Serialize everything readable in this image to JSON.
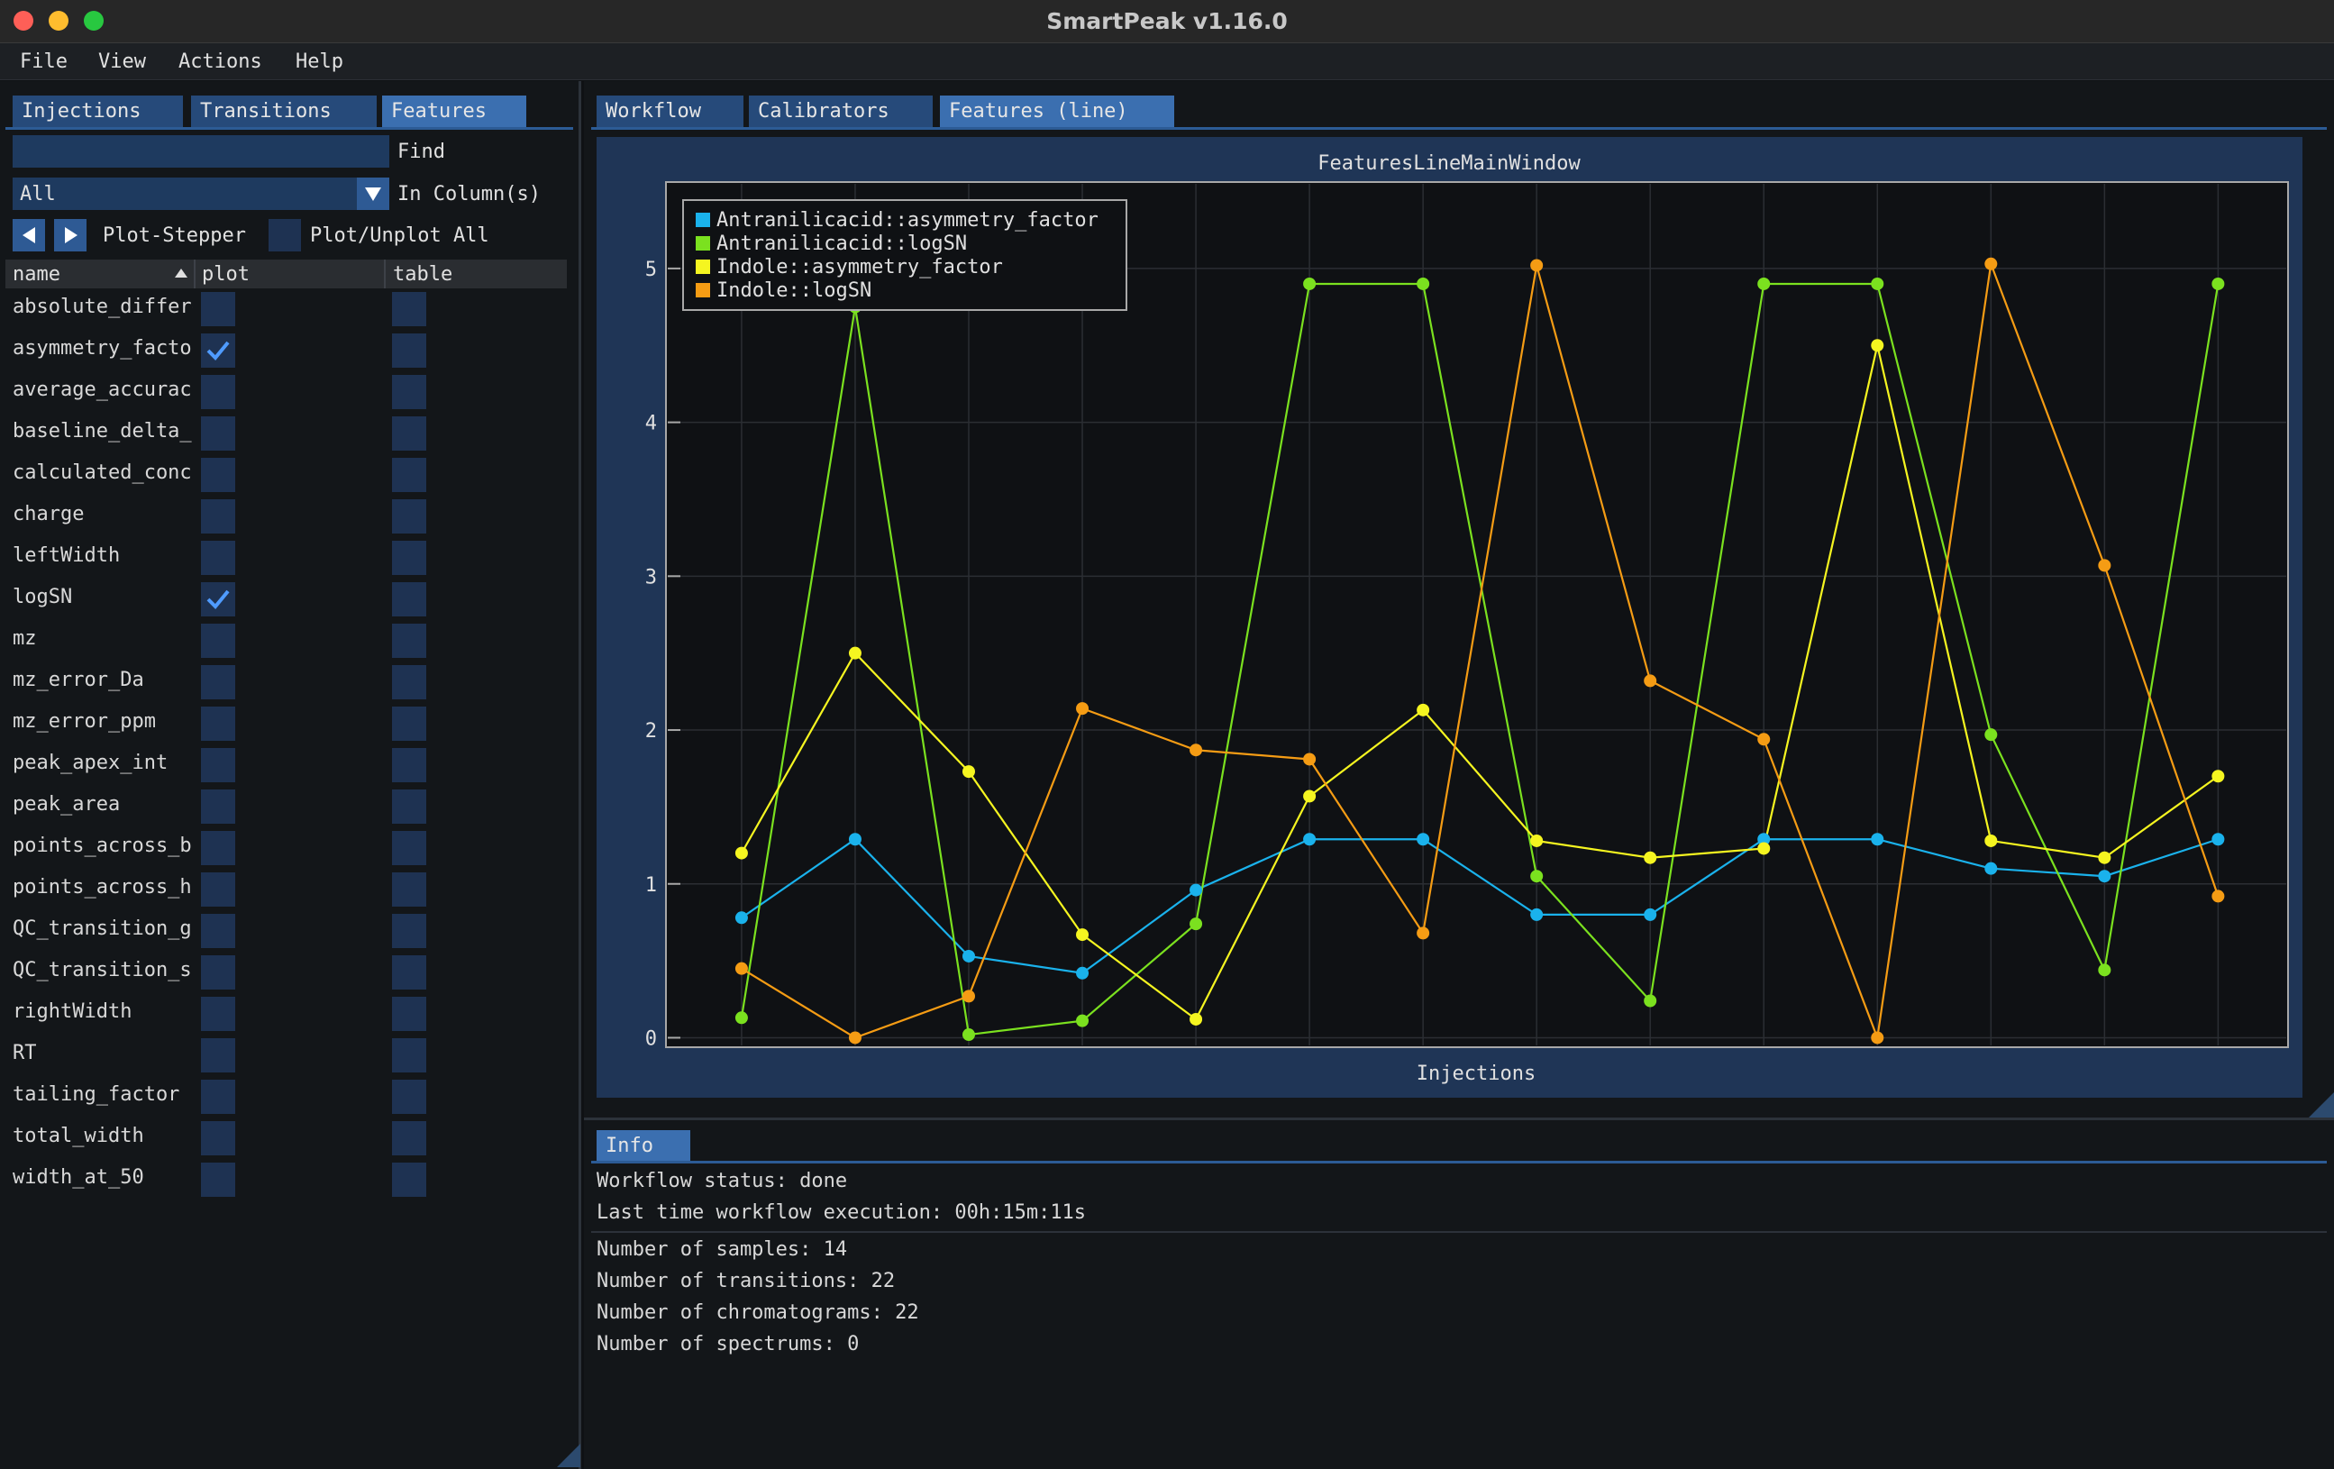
{
  "window": {
    "title": "SmartPeak v1.16.0"
  },
  "menu": [
    "File",
    "View",
    "Actions",
    "Help"
  ],
  "left_tabs": [
    {
      "label": "Injections",
      "active": false
    },
    {
      "label": "Transitions",
      "active": false
    },
    {
      "label": "Features",
      "active": true
    }
  ],
  "filter": {
    "find_value": "",
    "find_label": "Find",
    "column_value": "All",
    "column_label": "In Column(s)",
    "stepper_label": "Plot-Stepper",
    "plot_all_label": "Plot/Unplot All"
  },
  "table": {
    "headers": [
      "name",
      "plot",
      "table"
    ],
    "rows": [
      {
        "name": "absolute_differe",
        "plot": false,
        "table": false
      },
      {
        "name": "asymmetry_facto",
        "plot": true,
        "table": false
      },
      {
        "name": "average_accurac",
        "plot": false,
        "table": false
      },
      {
        "name": "baseline_delta_",
        "plot": false,
        "table": false
      },
      {
        "name": "calculated_conc",
        "plot": false,
        "table": false
      },
      {
        "name": "charge",
        "plot": false,
        "table": false
      },
      {
        "name": "leftWidth",
        "plot": false,
        "table": false
      },
      {
        "name": "logSN",
        "plot": true,
        "table": false
      },
      {
        "name": "mz",
        "plot": false,
        "table": false
      },
      {
        "name": "mz_error_Da",
        "plot": false,
        "table": false
      },
      {
        "name": "mz_error_ppm",
        "plot": false,
        "table": false
      },
      {
        "name": "peak_apex_int",
        "plot": false,
        "table": false
      },
      {
        "name": "peak_area",
        "plot": false,
        "table": false
      },
      {
        "name": "points_across_b",
        "plot": false,
        "table": false
      },
      {
        "name": "points_across_h",
        "plot": false,
        "table": false
      },
      {
        "name": "QC_transition_g",
        "plot": false,
        "table": false
      },
      {
        "name": "QC_transition_s",
        "plot": false,
        "table": false
      },
      {
        "name": "rightWidth",
        "plot": false,
        "table": false
      },
      {
        "name": "RT",
        "plot": false,
        "table": false
      },
      {
        "name": "tailing_factor",
        "plot": false,
        "table": false
      },
      {
        "name": "total_width",
        "plot": false,
        "table": false
      },
      {
        "name": "width_at_50",
        "plot": false,
        "table": false
      }
    ]
  },
  "right_tabs": [
    {
      "label": "Workflow",
      "active": false
    },
    {
      "label": "Calibrators",
      "active": false
    },
    {
      "label": "Features (line)",
      "active": true
    }
  ],
  "chart_data": {
    "type": "line",
    "title": "FeaturesLineMainWindow",
    "xlabel": "Injections",
    "ylabel": "",
    "xlim": [
      0.35,
      14.6
    ],
    "ylim": [
      -0.05,
      5.55
    ],
    "yticks": [
      0,
      1,
      2,
      3,
      4,
      5
    ],
    "grid": true,
    "legend_position": "top-left",
    "x": [
      1,
      2,
      3,
      4,
      5,
      6,
      7,
      8,
      9,
      10,
      11,
      12,
      13,
      14
    ],
    "series": [
      {
        "name": "Antranilicacid::asymmetry_factor",
        "color": "#1ab2ec",
        "values": [
          0.78,
          1.29,
          0.53,
          0.42,
          0.96,
          1.29,
          1.29,
          0.8,
          0.8,
          1.29,
          1.29,
          1.1,
          1.05,
          1.29
        ]
      },
      {
        "name": "Antranilicacid::logSN",
        "color": "#7be11f",
        "values": [
          0.13,
          4.75,
          0.02,
          0.11,
          0.74,
          4.9,
          4.9,
          1.05,
          0.24,
          4.9,
          4.9,
          1.97,
          0.44,
          4.9
        ]
      },
      {
        "name": "Indole::asymmetry_factor",
        "color": "#f5f520",
        "values": [
          1.2,
          2.5,
          1.73,
          0.67,
          0.12,
          1.57,
          2.13,
          1.28,
          1.17,
          1.23,
          4.5,
          1.28,
          1.17,
          1.7
        ]
      },
      {
        "name": "Indole::logSN",
        "color": "#f59c14",
        "values": [
          0.45,
          0.0,
          0.27,
          2.14,
          1.87,
          1.81,
          0.68,
          5.02,
          2.32,
          1.94,
          0.0,
          5.03,
          3.07,
          0.92
        ]
      }
    ]
  },
  "info": {
    "tab_label": "Info",
    "workflow_status": "Workflow status: done",
    "last_execution": "Last time workflow execution: 00h:15m:11s",
    "samples": "Number of samples: 14",
    "transitions": "Number of transitions: 22",
    "chromatograms": "Number of chromatograms: 22",
    "spectrums": "Number of spectrums: 0"
  },
  "colors": {
    "tab_active": "#3b6fb0",
    "tab_inactive": "#264a7a",
    "check_mark": "#4f9bff"
  }
}
